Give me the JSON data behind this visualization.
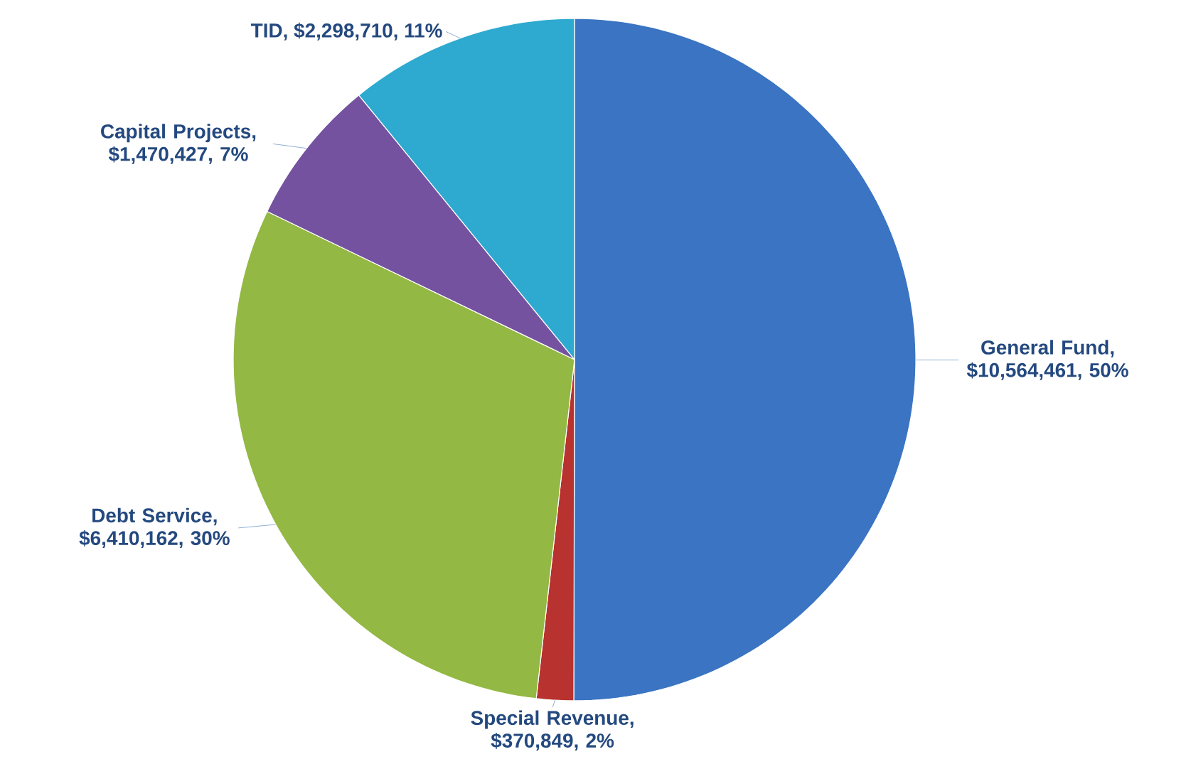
{
  "chart_data": {
    "type": "pie",
    "categories": [
      "General Fund",
      "Special Revenue",
      "Debt Service",
      "Capital Projects",
      "TID"
    ],
    "values": [
      10564461,
      370849,
      6410162,
      1470427,
      2298710
    ],
    "colors": [
      "#3a74c2",
      "#b8322f",
      "#93b843",
      "#7452a0",
      "#2ea9cf"
    ],
    "value_labels": [
      ", $10,564,461, 50%",
      ", $370,849, 2%",
      ", $6,410,162, 30%",
      ", $1,470,427, 7%",
      ", $2,298,710, 11%"
    ]
  }
}
